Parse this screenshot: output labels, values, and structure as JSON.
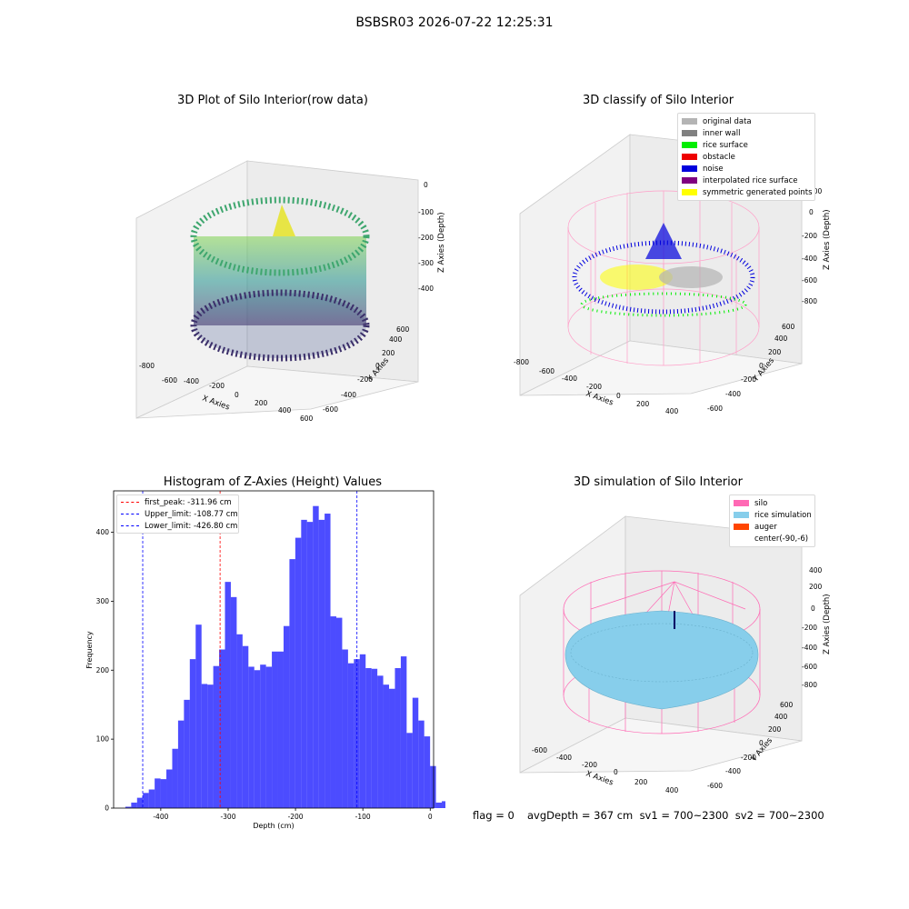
{
  "suptitle": "BSBSR03 2026-07-22 12:25:31",
  "panels": {
    "raw": {
      "title": "3D Plot of Silo Interior(row data)",
      "xlabel": "X Axies",
      "ylabel": "Y Axies",
      "zlabel": "Z Axies (Depth)",
      "xticks": [
        "-800",
        "-600",
        "-400",
        "-200",
        "0",
        "200",
        "400",
        "600"
      ],
      "yticks": [
        "-600",
        "-400",
        "-200",
        "0",
        "200",
        "400",
        "600"
      ],
      "zticks": [
        "0",
        "-100",
        "-200",
        "-300",
        "-400"
      ]
    },
    "classify": {
      "title": "3D classify of Silo Interior",
      "xlabel": "X Axies",
      "ylabel": "Y Axies",
      "zlabel": "Z Axies (Depth)",
      "xticks": [
        "-800",
        "-600",
        "-400",
        "-200",
        "0",
        "200",
        "400"
      ],
      "yticks": [
        "-600",
        "-400",
        "-200",
        "0",
        "200",
        "400",
        "600"
      ],
      "zticks": [
        "200",
        "0",
        "-200",
        "-400",
        "-600",
        "-800"
      ],
      "legend": [
        {
          "label": "original data",
          "color": "#b4b4b4"
        },
        {
          "label": "inner wall",
          "color": "#808080"
        },
        {
          "label": "rice surface",
          "color": "#00ee00"
        },
        {
          "label": "obstacle",
          "color": "#ee0000"
        },
        {
          "label": "noise",
          "color": "#0000dd"
        },
        {
          "label": "interpolated rice surface",
          "color": "#800080"
        },
        {
          "label": "symmetric generated points",
          "color": "#ffff00"
        }
      ]
    },
    "simulation": {
      "title": "3D simulation of Silo Interior",
      "xlabel": "X Axies",
      "ylabel": "Y Axies",
      "zlabel": "Z Axies (Depth)",
      "xticks": [
        "-600",
        "-400",
        "-200",
        "0",
        "200",
        "400"
      ],
      "yticks": [
        "-600",
        "-400",
        "-200",
        "0",
        "200",
        "400",
        "600"
      ],
      "zticks": [
        "400",
        "200",
        "0",
        "-200",
        "-400",
        "-600",
        "-800"
      ],
      "legend": [
        {
          "label": "silo",
          "color": "#ff69b4"
        },
        {
          "label": "rice simulation",
          "color": "#87ceeb"
        },
        {
          "label": "auger",
          "color": "#ff4500"
        },
        {
          "label": "center(-90,-6)",
          "color": ""
        }
      ]
    }
  },
  "footer": {
    "flag": "flag = 0",
    "stats": "avgDepth = 367 cm  sv1 = 700~2300  sv2 = 700~2300"
  },
  "chart_data": {
    "type": "bar",
    "title": "Histogram of Z-Axies (Height) Values",
    "xlabel": "Depth (cm)",
    "ylabel": "Frequency",
    "xlim": [
      -470,
      5
    ],
    "ylim": [
      0,
      460
    ],
    "xticks": [
      -400,
      -300,
      -200,
      -100,
      0
    ],
    "yticks": [
      0,
      100,
      200,
      300,
      400
    ],
    "bar_color": "#0000ff",
    "bin_width": 8.7,
    "bin_start": -452.6,
    "values": [
      2,
      8,
      15,
      22,
      27,
      43,
      42,
      56,
      86,
      127,
      157,
      216,
      266,
      180,
      179,
      206,
      230,
      328,
      306,
      252,
      235,
      205,
      200,
      208,
      205,
      227,
      227,
      264,
      361,
      392,
      418,
      415,
      438,
      418,
      427,
      278,
      276,
      230,
      210,
      216,
      223,
      203,
      202,
      192,
      179,
      173,
      203,
      220,
      109,
      160,
      127,
      104,
      61,
      8,
      10
    ],
    "vlines": [
      {
        "label": "first_peak: -311.96 cm",
        "x": -311.96,
        "color": "#ff0000"
      },
      {
        "label": "Upper_limit: -108.77 cm",
        "x": -108.77,
        "color": "#0000ff"
      },
      {
        "label": "Lower_limit: -426.80 cm",
        "x": -426.8,
        "color": "#0000ff"
      }
    ],
    "legend_position": "top-left"
  }
}
